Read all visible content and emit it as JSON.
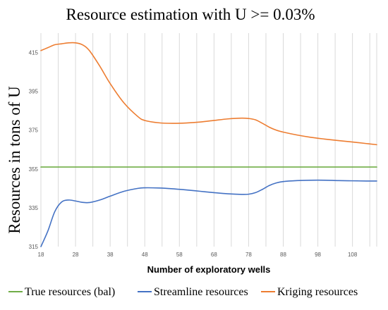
{
  "chart_data": {
    "type": "line",
    "title": "Resource estimation with U >= 0.03%",
    "xlabel": "Number of exploratory wells",
    "ylabel": "Resources in tons of U",
    "x_ticks": [
      "18",
      "28",
      "38",
      "48",
      "58",
      "68",
      "78",
      "88",
      "98",
      "108"
    ],
    "y_ticks": [
      "315",
      "335",
      "355",
      "375",
      "395",
      "415"
    ],
    "xlim": [
      18,
      115
    ],
    "ylim": [
      315,
      425
    ],
    "grid": "vertical",
    "legend_position": "bottom",
    "series": [
      {
        "name": "True resources (bal)",
        "color": "#70ad47",
        "x": [
          18,
          115
        ],
        "y": [
          356,
          356
        ]
      },
      {
        "name": "Streamline resources",
        "color": "#4472c4",
        "x": [
          18,
          20,
          22,
          24,
          26,
          28,
          30,
          32,
          35,
          38,
          42,
          46,
          48,
          52,
          56,
          60,
          64,
          68,
          72,
          76,
          78,
          80,
          82,
          84,
          86,
          88,
          92,
          96,
          100,
          104,
          108,
          112,
          115
        ],
        "y": [
          315,
          323,
          333,
          338,
          339,
          338.5,
          337.8,
          337.7,
          339,
          341,
          343.5,
          345,
          345.3,
          345.2,
          344.8,
          344.2,
          343.5,
          342.8,
          342.2,
          341.9,
          342,
          342.8,
          344.5,
          346.5,
          347.8,
          348.5,
          349,
          349.2,
          349.2,
          349,
          348.9,
          348.8,
          348.8
        ]
      },
      {
        "name": "Kriging resources",
        "color": "#ed7d31",
        "x": [
          18,
          20,
          22,
          24,
          26,
          28,
          30,
          32,
          35,
          38,
          42,
          46,
          48,
          52,
          56,
          60,
          64,
          68,
          72,
          76,
          78,
          80,
          82,
          84,
          86,
          88,
          92,
          96,
          100,
          104,
          108,
          112,
          115
        ],
        "y": [
          416,
          417.5,
          419,
          419.5,
          420,
          420,
          419,
          416,
          408,
          399,
          389,
          382,
          380,
          378.8,
          378.5,
          378.7,
          379.2,
          380,
          380.8,
          381.2,
          381,
          380.3,
          378.5,
          376.5,
          375,
          374,
          372.5,
          371.3,
          370.4,
          369.6,
          368.9,
          368.1,
          367.5
        ]
      }
    ]
  }
}
